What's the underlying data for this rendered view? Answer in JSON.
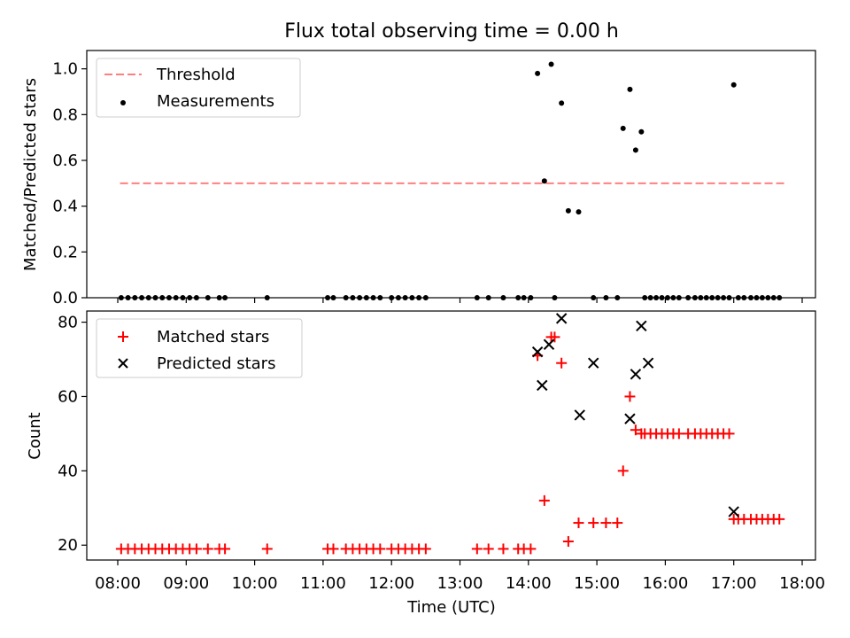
{
  "title": "Flux total observing time = 0.00 h",
  "colors": {
    "threshold": "#ff7f7f",
    "measurements": "#000000",
    "matched": "#ff0000",
    "predicted": "#000000"
  },
  "chart_data": [
    {
      "type": "scatter",
      "ylabel": "Matched/Predicted stars",
      "xlabel": "",
      "xlim": [
        "08:00",
        "18:00"
      ],
      "ylim": [
        0,
        1.08
      ],
      "yticks": [
        "0.0",
        "0.2",
        "0.4",
        "0.6",
        "0.8",
        "1.0"
      ],
      "ytick_values": [
        0,
        0.2,
        0.4,
        0.6,
        0.8,
        1.0
      ],
      "legend": {
        "placement": "top-left",
        "entries": [
          "Threshold",
          "Measurements"
        ]
      },
      "series": [
        {
          "name": "Threshold",
          "kind": "dashed-line",
          "x": [
            "08:02",
            "17:45"
          ],
          "y": [
            0.5,
            0.5
          ]
        },
        {
          "name": "Measurements",
          "kind": "points",
          "x": [
            "08:03",
            "08:09",
            "08:15",
            "08:21",
            "08:27",
            "08:33",
            "08:39",
            "08:45",
            "08:51",
            "08:57",
            "09:03",
            "09:09",
            "09:19",
            "09:29",
            "09:34",
            "10:11",
            "11:04",
            "11:09",
            "11:20",
            "11:26",
            "11:32",
            "11:38",
            "11:44",
            "11:50",
            "12:00",
            "12:06",
            "12:12",
            "12:18",
            "12:24",
            "12:30",
            "13:15",
            "13:25",
            "13:38",
            "13:51",
            "13:56",
            "14:02",
            "14:08",
            "14:14",
            "14:20",
            "14:23",
            "14:29",
            "14:35",
            "14:44",
            "14:57",
            "15:08",
            "15:18",
            "15:23",
            "15:29",
            "15:34",
            "15:39",
            "15:42",
            "15:47",
            "15:52",
            "15:57",
            "16:02",
            "16:07",
            "16:12",
            "16:20",
            "16:26",
            "16:31",
            "16:36",
            "16:41",
            "16:46",
            "16:51",
            "16:56",
            "17:00",
            "17:04",
            "17:09",
            "17:15",
            "17:20",
            "17:25",
            "17:30",
            "17:35",
            "17:40"
          ],
          "y": [
            0,
            0,
            0,
            0,
            0,
            0,
            0,
            0,
            0,
            0,
            0,
            0,
            0,
            0,
            0,
            0,
            0,
            0,
            0,
            0,
            0,
            0,
            0,
            0,
            0,
            0,
            0,
            0,
            0,
            0,
            0,
            0,
            0,
            0,
            0,
            0,
            0.98,
            0.51,
            1.02,
            0,
            0.85,
            0.38,
            0.375,
            0,
            0,
            0,
            0.74,
            0.91,
            0.645,
            0.725,
            0,
            0,
            0,
            0,
            0,
            0,
            0,
            0,
            0,
            0,
            0,
            0,
            0,
            0,
            0,
            0.93,
            0,
            0,
            0,
            0,
            0,
            0,
            0,
            0
          ]
        }
      ]
    },
    {
      "type": "scatter",
      "ylabel": "Count",
      "xlabel": "Time (UTC)",
      "xlim": [
        "08:00",
        "18:00"
      ],
      "ylim": [
        16,
        83
      ],
      "xticks": [
        "08:00",
        "09:00",
        "10:00",
        "11:00",
        "12:00",
        "13:00",
        "14:00",
        "15:00",
        "16:00",
        "17:00",
        "18:00"
      ],
      "yticks": [
        "20",
        "40",
        "60",
        "80"
      ],
      "ytick_values": [
        20,
        40,
        60,
        80
      ],
      "legend": {
        "placement": "top-left",
        "entries": [
          "Matched stars",
          "Predicted stars"
        ]
      },
      "series": [
        {
          "name": "Matched stars",
          "marker": "plus",
          "x": [
            "08:03",
            "08:09",
            "08:15",
            "08:21",
            "08:27",
            "08:33",
            "08:39",
            "08:45",
            "08:51",
            "08:57",
            "09:03",
            "09:09",
            "09:19",
            "09:29",
            "09:34",
            "10:11",
            "11:04",
            "11:09",
            "11:20",
            "11:26",
            "11:32",
            "11:38",
            "11:44",
            "11:50",
            "12:00",
            "12:06",
            "12:12",
            "12:18",
            "12:24",
            "12:30",
            "13:15",
            "13:25",
            "13:38",
            "13:51",
            "13:56",
            "14:02",
            "14:08",
            "14:14",
            "14:20",
            "14:23",
            "14:29",
            "14:35",
            "14:44",
            "14:57",
            "15:08",
            "15:18",
            "15:23",
            "15:29",
            "15:34",
            "15:39",
            "15:42",
            "15:47",
            "15:52",
            "15:57",
            "16:02",
            "16:07",
            "16:12",
            "16:20",
            "16:26",
            "16:31",
            "16:36",
            "16:41",
            "16:46",
            "16:51",
            "16:56",
            "17:00",
            "17:04",
            "17:09",
            "17:15",
            "17:20",
            "17:25",
            "17:30",
            "17:35",
            "17:40"
          ],
          "y": [
            19,
            19,
            19,
            19,
            19,
            19,
            19,
            19,
            19,
            19,
            19,
            19,
            19,
            19,
            19,
            19,
            19,
            19,
            19,
            19,
            19,
            19,
            19,
            19,
            19,
            19,
            19,
            19,
            19,
            19,
            19,
            19,
            19,
            19,
            19,
            19,
            71,
            32,
            76,
            76,
            69,
            21,
            26,
            26,
            26,
            26,
            40,
            60,
            51,
            50,
            50,
            50,
            50,
            50,
            50,
            50,
            50,
            50,
            50,
            50,
            50,
            50,
            50,
            50,
            50,
            27,
            27,
            27,
            27,
            27,
            27,
            27,
            27,
            27
          ]
        },
        {
          "name": "Predicted stars",
          "marker": "x",
          "x": [
            "14:08",
            "14:12",
            "14:18",
            "14:29",
            "14:45",
            "14:57",
            "15:29",
            "15:34",
            "15:39",
            "15:45",
            "17:00"
          ],
          "y": [
            72,
            63,
            74,
            81,
            55,
            69,
            54,
            66,
            79,
            69,
            29
          ]
        }
      ]
    }
  ]
}
